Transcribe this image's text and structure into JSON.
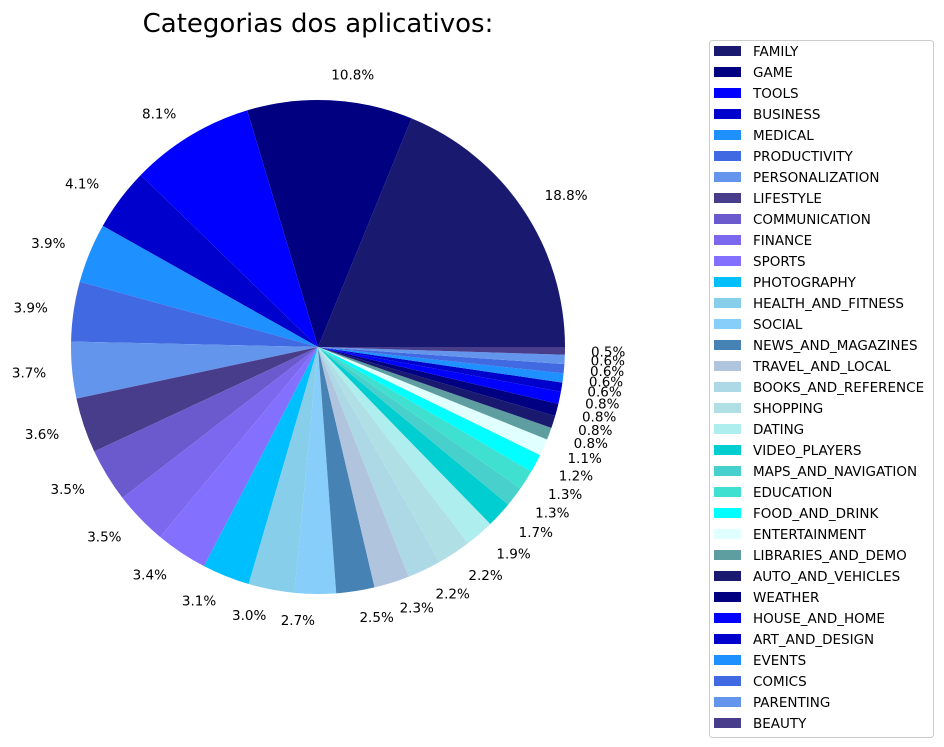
{
  "chart_data": {
    "type": "pie",
    "title": "Categorias dos aplicativos:",
    "start_angle_deg": 0,
    "direction": "counterclockwise",
    "legend_position": "right",
    "slices": [
      {
        "label": "FAMILY",
        "value": 18.8,
        "display": "18.8%",
        "color": "#191970"
      },
      {
        "label": "GAME",
        "value": 10.8,
        "display": "10.8%",
        "color": "#000080"
      },
      {
        "label": "TOOLS",
        "value": 8.1,
        "display": "8.1%",
        "color": "#0000FF"
      },
      {
        "label": "BUSINESS",
        "value": 4.1,
        "display": "4.1%",
        "color": "#0000CD"
      },
      {
        "label": "MEDICAL",
        "value": 3.9,
        "display": "3.9%",
        "color": "#1E90FF"
      },
      {
        "label": "PRODUCTIVITY",
        "value": 3.9,
        "display": "3.9%",
        "color": "#4169E1"
      },
      {
        "label": "PERSONALIZATION",
        "value": 3.7,
        "display": "3.7%",
        "color": "#6495ED"
      },
      {
        "label": "LIFESTYLE",
        "value": 3.6,
        "display": "3.6%",
        "color": "#483D8B"
      },
      {
        "label": "COMMUNICATION",
        "value": 3.5,
        "display": "3.5%",
        "color": "#6A5ACD"
      },
      {
        "label": "FINANCE",
        "value": 3.5,
        "display": "3.5%",
        "color": "#7B68EE"
      },
      {
        "label": "SPORTS",
        "value": 3.4,
        "display": "3.4%",
        "color": "#8470FF"
      },
      {
        "label": "PHOTOGRAPHY",
        "value": 3.1,
        "display": "3.1%",
        "color": "#00BFFF"
      },
      {
        "label": "HEALTH_AND_FITNESS",
        "value": 3.0,
        "display": "3.0%",
        "color": "#87CEEB"
      },
      {
        "label": "SOCIAL",
        "value": 2.7,
        "display": "2.7%",
        "color": "#87CEFA"
      },
      {
        "label": "NEWS_AND_MAGAZINES",
        "value": 2.5,
        "display": "2.5%",
        "color": "#4682B4"
      },
      {
        "label": "TRAVEL_AND_LOCAL",
        "value": 2.3,
        "display": "2.3%",
        "color": "#B0C4DE"
      },
      {
        "label": "BOOKS_AND_REFERENCE",
        "value": 2.2,
        "display": "2.2%",
        "color": "#ADD8E6"
      },
      {
        "label": "SHOPPING",
        "value": 2.2,
        "display": "2.2%",
        "color": "#B0E0E6"
      },
      {
        "label": "DATING",
        "value": 1.9,
        "display": "1.9%",
        "color": "#AFEEEE"
      },
      {
        "label": "VIDEO_PLAYERS",
        "value": 1.7,
        "display": "1.7%",
        "color": "#00CED1"
      },
      {
        "label": "MAPS_AND_NAVIGATION",
        "value": 1.3,
        "display": "1.3%",
        "color": "#48D1CC"
      },
      {
        "label": "EDUCATION",
        "value": 1.3,
        "display": "1.3%",
        "color": "#40E0D0"
      },
      {
        "label": "FOOD_AND_DRINK",
        "value": 1.2,
        "display": "1.2%",
        "color": "#00FFFF"
      },
      {
        "label": "ENTERTAINMENT",
        "value": 1.1,
        "display": "1.1%",
        "color": "#E0FFFF"
      },
      {
        "label": "LIBRARIES_AND_DEMO",
        "value": 0.8,
        "display": "0.8%",
        "color": "#5F9EA0"
      },
      {
        "label": "AUTO_AND_VEHICLES",
        "value": 0.8,
        "display": "0.8%",
        "color": "#191970"
      },
      {
        "label": "WEATHER",
        "value": 0.8,
        "display": "0.8%",
        "color": "#000080"
      },
      {
        "label": "HOUSE_AND_HOME",
        "value": 0.8,
        "display": "0.8%",
        "color": "#0000FF"
      },
      {
        "label": "ART_AND_DESIGN",
        "value": 0.6,
        "display": "0.6%",
        "color": "#0000CD"
      },
      {
        "label": "EVENTS",
        "value": 0.6,
        "display": "0.6%",
        "color": "#1E90FF"
      },
      {
        "label": "COMICS",
        "value": 0.6,
        "display": "0.6%",
        "color": "#4169E1"
      },
      {
        "label": "PARENTING",
        "value": 0.6,
        "display": "0.6%",
        "color": "#6495ED"
      },
      {
        "label": "BEAUTY",
        "value": 0.5,
        "display": "0.5%",
        "color": "#483D8B"
      }
    ]
  }
}
